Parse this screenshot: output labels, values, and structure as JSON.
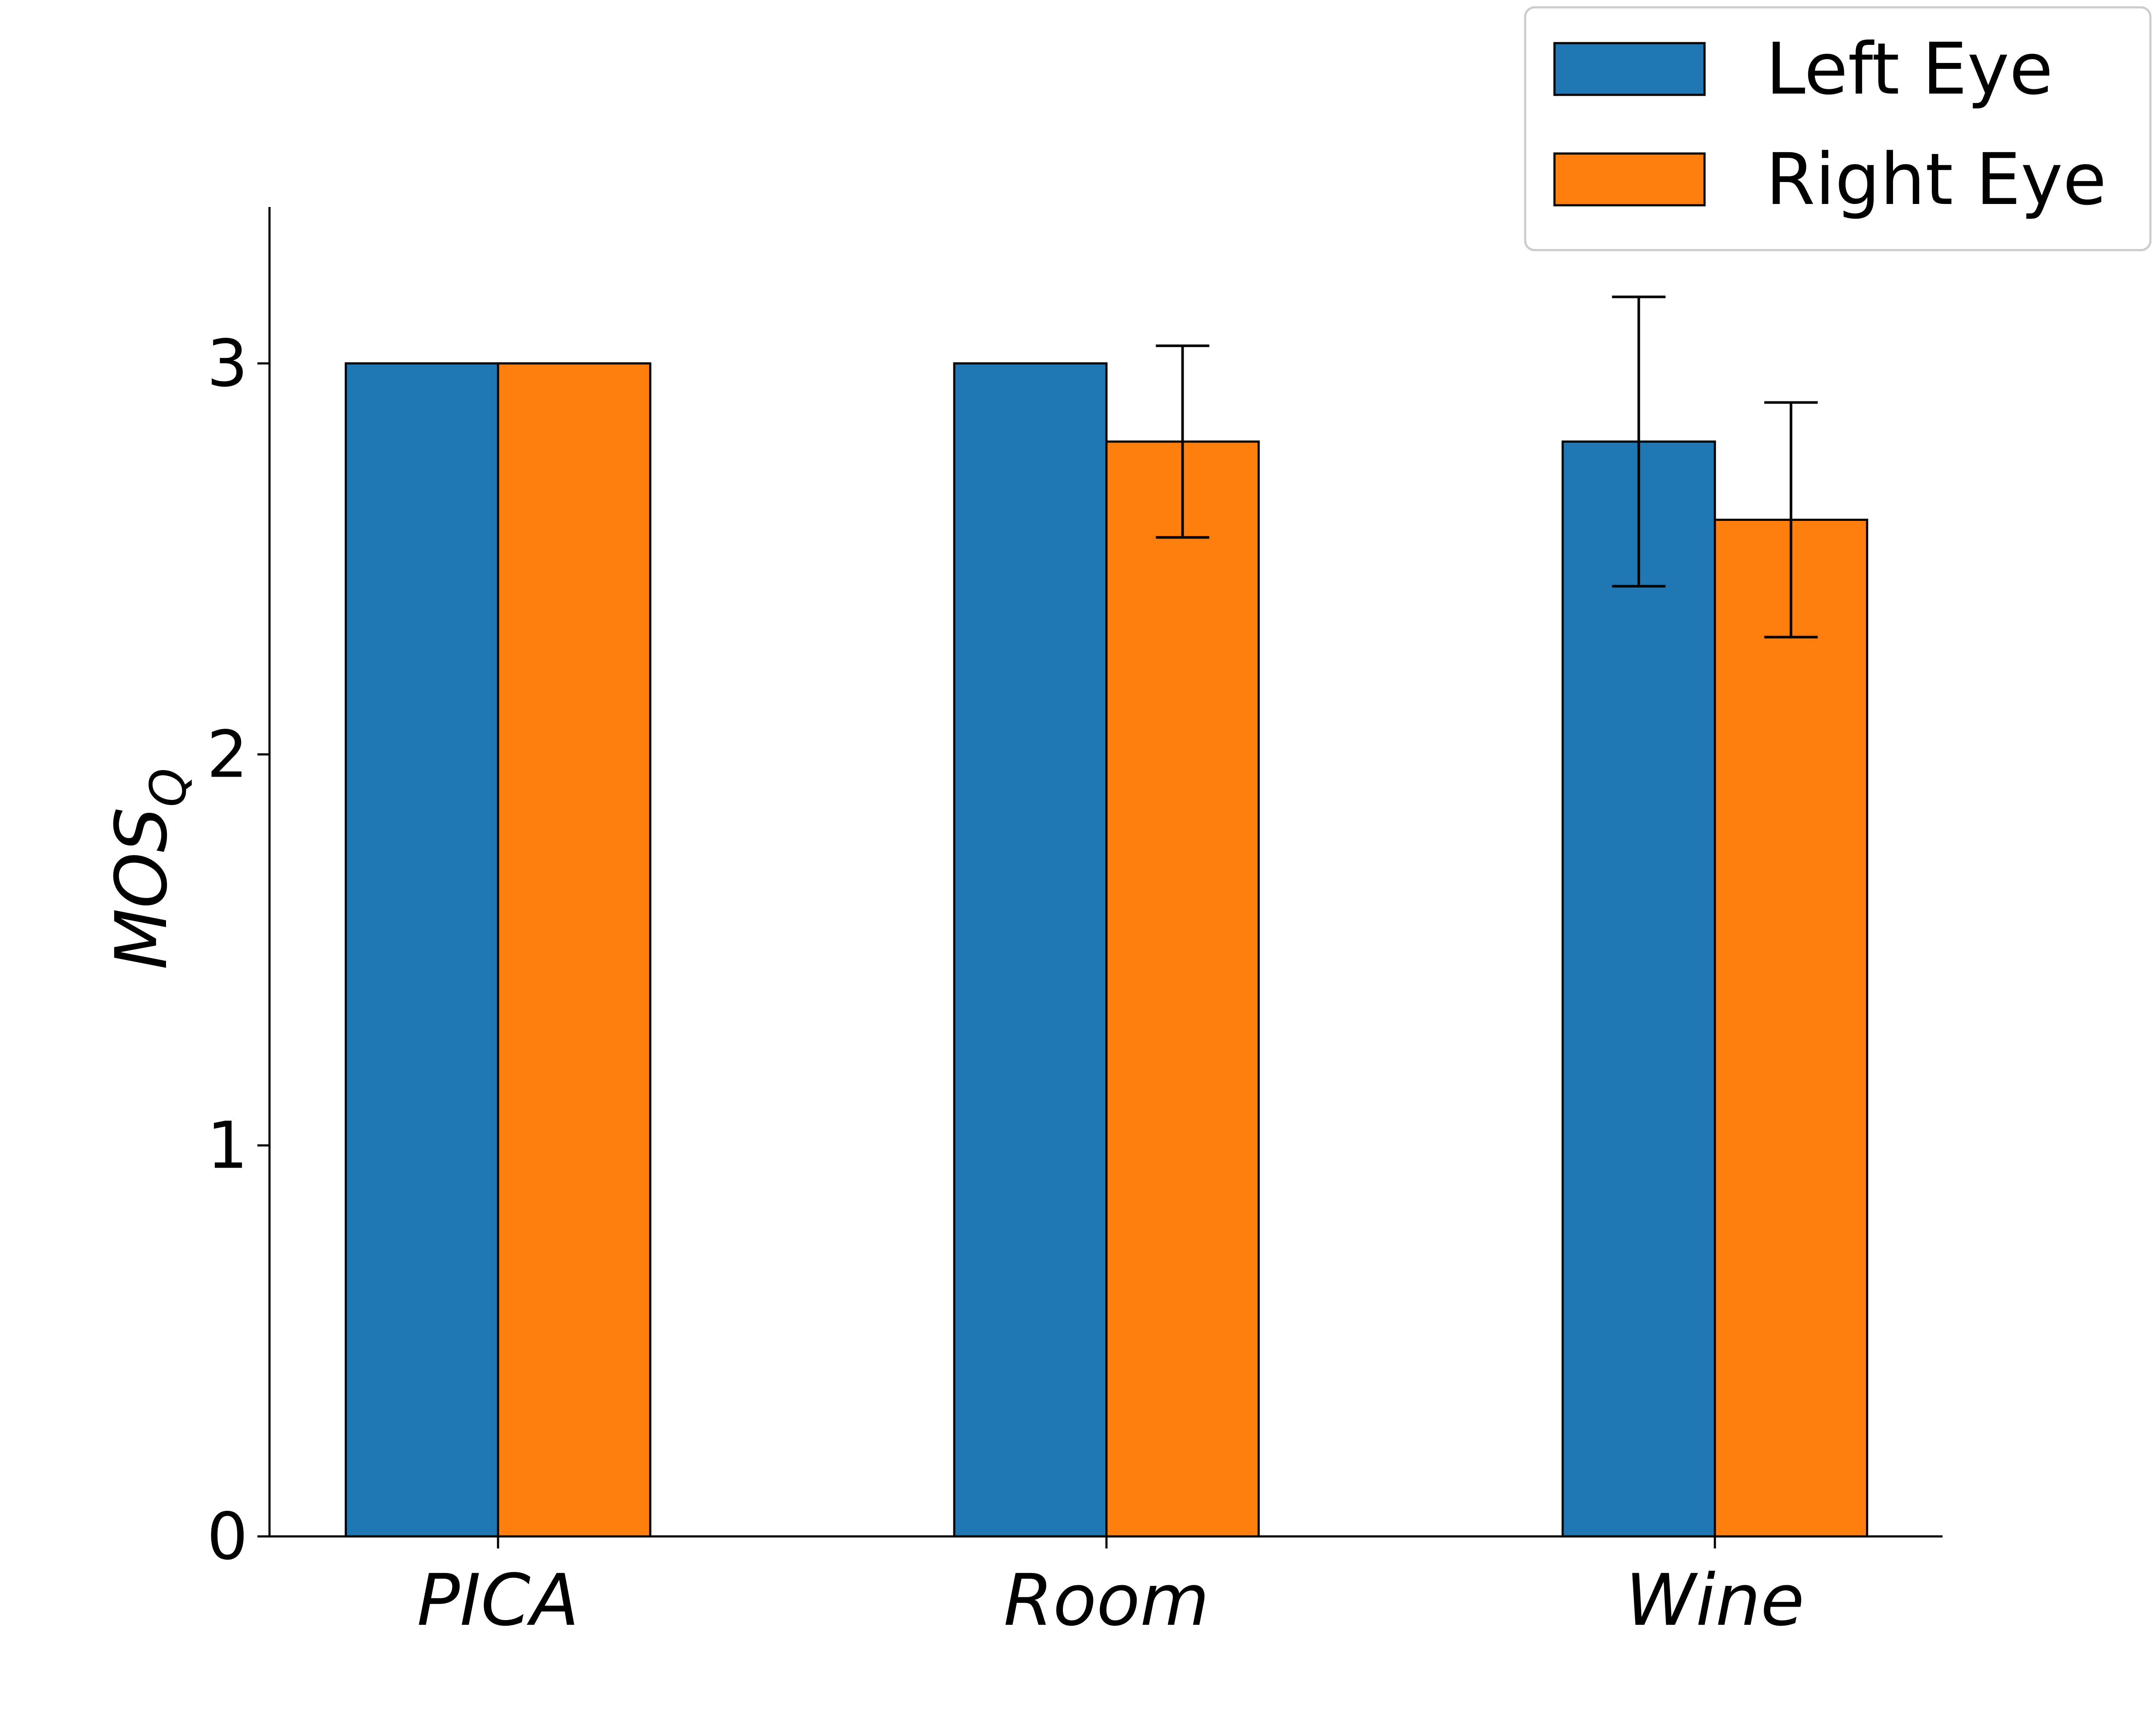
{
  "chart_data": {
    "type": "bar",
    "title": "",
    "xlabel": "",
    "ylabel": "MOS",
    "ylabel_subscript": "Q",
    "categories": [
      "PICA",
      "Room",
      "Wine"
    ],
    "ylim": [
      0,
      3.4
    ],
    "yticks": [
      0,
      1,
      2,
      3
    ],
    "grid": false,
    "legend_position": "top-right",
    "series": [
      {
        "name": "Left Eye",
        "color": "#1f77b4",
        "values": [
          3.0,
          3.0,
          2.8
        ],
        "error": [
          null,
          null,
          0.37
        ]
      },
      {
        "name": "Right Eye",
        "color": "#ff7f0e",
        "values": [
          3.0,
          2.8,
          2.6
        ],
        "error": [
          null,
          0.245,
          0.3
        ]
      }
    ]
  }
}
